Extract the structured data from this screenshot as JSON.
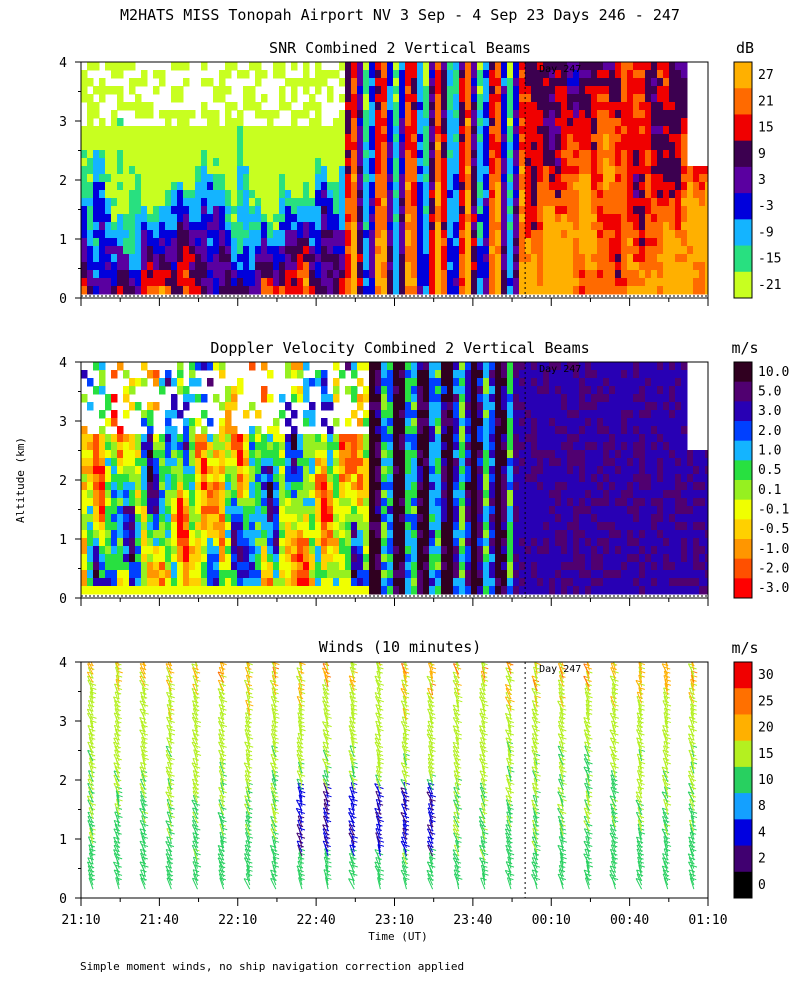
{
  "title": "M2HATS MISS Tonopah Airport NV   3 Sep -  4 Sep 23 Days 246 - 247",
  "ylabel": "Altitude (km)",
  "xlabel": "Time (UT)",
  "footnote": "Simple moment winds, no ship navigation correction applied",
  "day_marker": "Day 247",
  "day_marker_time": "00:00",
  "x_ticks": [
    "21:10",
    "21:40",
    "22:10",
    "22:40",
    "23:10",
    "23:40",
    "00:10",
    "00:40",
    "01:10"
  ],
  "y_ticks": [
    "0",
    "1",
    "2",
    "3",
    "4"
  ],
  "chart_data": [
    {
      "type": "heatmap",
      "title": "SNR Combined 2 Vertical Beams",
      "units": "dB",
      "x_range": [
        "21:10",
        "01:10"
      ],
      "ylim": [
        0,
        4
      ],
      "colorbar": {
        "labels": [
          "27",
          "21",
          "15",
          "9",
          "3",
          "-3",
          "-9",
          "-15",
          "-21"
        ],
        "colors": [
          "#ffb000",
          "#ff6a00",
          "#f00000",
          "#3c0050",
          "#5a00a0",
          "#0000dc",
          "#14b4ff",
          "#28e080",
          "#c8ff20"
        ]
      }
    },
    {
      "type": "heatmap",
      "title": "Doppler Velocity Combined 2 Vertical Beams",
      "units": "m/s",
      "x_range": [
        "21:10",
        "01:10"
      ],
      "ylim": [
        0,
        4
      ],
      "colorbar": {
        "labels": [
          "10.0",
          "5.0",
          "3.0",
          "2.0",
          "1.0",
          "0.5",
          "0.1",
          "-0.1",
          "-0.5",
          "-1.0",
          "-2.0",
          "-3.0"
        ],
        "colors": [
          "#300020",
          "#500070",
          "#2800b4",
          "#0040ff",
          "#14b4ff",
          "#28e040",
          "#96f020",
          "#f0ff00",
          "#ffd000",
          "#ff9600",
          "#ff5000",
          "#ff0000"
        ]
      }
    },
    {
      "type": "scatter",
      "title": "Winds (10 minutes)",
      "units": "m/s",
      "x_range": [
        "21:10",
        "01:10"
      ],
      "ylim": [
        0,
        4
      ],
      "colorbar": {
        "labels": [
          "30",
          "25",
          "20",
          "15",
          "10",
          "8",
          "4",
          "2",
          "0"
        ],
        "colors": [
          "#f00000",
          "#ff7000",
          "#ffb000",
          "#b4f020",
          "#28d060",
          "#14a0ff",
          "#0000e0",
          "#400070",
          "#000000"
        ]
      },
      "profile_times": [
        "21:10",
        "21:20",
        "21:30",
        "21:40",
        "21:50",
        "22:00",
        "22:10",
        "22:20",
        "22:30",
        "22:40",
        "22:50",
        "23:00",
        "23:10",
        "23:20",
        "23:30",
        "23:40",
        "23:50",
        "00:00",
        "00:10",
        "00:20",
        "00:30",
        "00:40",
        "00:50",
        "01:00"
      ]
    }
  ]
}
